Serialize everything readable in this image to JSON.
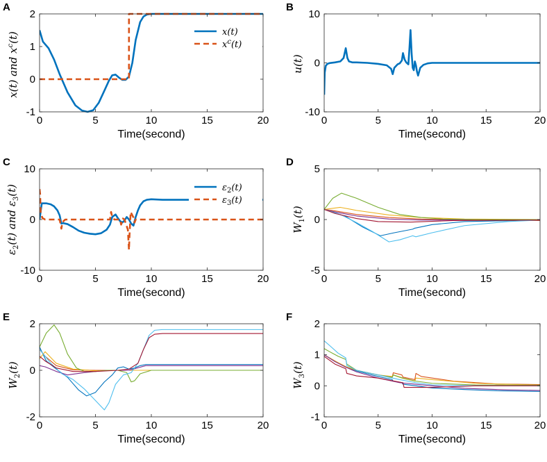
{
  "chart_data": [
    {
      "id": "A",
      "type": "line",
      "ylabel": "x(t) and x^c(t)",
      "xlabel": "Time(second)",
      "xlim": [
        0,
        20
      ],
      "ylim": [
        -1,
        2
      ],
      "xticks": [
        "0",
        "5",
        "10",
        "15",
        "20"
      ],
      "yticks": [
        "-1",
        "0",
        "1",
        "2"
      ],
      "legend": "top-right",
      "series": [
        {
          "name": "x(t)",
          "style": "solid",
          "color": "#0072BD",
          "x": [
            0,
            0.3,
            0.8,
            1.3,
            1.8,
            2.5,
            3.2,
            3.8,
            4.3,
            4.8,
            5.3,
            5.8,
            6.2,
            6.5,
            6.8,
            7.1,
            7.4,
            7.7,
            8.0,
            8.3,
            8.6,
            9.0,
            9.3,
            9.6,
            10.0,
            11,
            20
          ],
          "y": [
            1.5,
            1.15,
            0.95,
            0.6,
            0.15,
            -0.4,
            -0.8,
            -0.96,
            -1.0,
            -0.95,
            -0.72,
            -0.35,
            -0.05,
            0.12,
            0.14,
            0.05,
            -0.02,
            -0.02,
            0.08,
            0.5,
            1.2,
            1.75,
            1.92,
            1.98,
            2.0,
            2.0,
            2.0
          ]
        },
        {
          "name": "x^c(t)",
          "style": "dashed",
          "color": "#D95319",
          "x": [
            0,
            8.0,
            8.0,
            20
          ],
          "y": [
            0,
            0,
            2,
            2
          ]
        }
      ]
    },
    {
      "id": "B",
      "type": "line",
      "ylabel": "u(t)",
      "xlabel": "Time(second)",
      "xlim": [
        0,
        20
      ],
      "ylim": [
        -10,
        10
      ],
      "xticks": [
        "0",
        "5",
        "10",
        "15",
        "20"
      ],
      "yticks": [
        "-10",
        "0",
        "10"
      ],
      "series": [
        {
          "name": "u(t)",
          "style": "solid",
          "color": "#0072BD",
          "x": [
            0,
            0.05,
            0.15,
            0.3,
            0.5,
            1.0,
            1.5,
            1.8,
            2.0,
            2.15,
            2.3,
            2.6,
            3,
            4,
            5,
            5.8,
            6.2,
            6.35,
            6.5,
            6.8,
            7.0,
            7.2,
            7.3,
            7.45,
            7.6,
            7.8,
            7.9,
            8.0,
            8.1,
            8.2,
            8.3,
            8.4,
            8.5,
            8.6,
            8.7,
            8.9,
            9.2,
            9.6,
            10,
            20
          ],
          "y": [
            -6.5,
            -2,
            -0.6,
            -0.2,
            -0.05,
            0.1,
            0.3,
            1.0,
            3.0,
            1.0,
            0.3,
            0.1,
            0.1,
            0,
            -0.2,
            -0.5,
            -1.2,
            -2.3,
            -1.0,
            -0.3,
            -0.1,
            0.5,
            2.0,
            0.7,
            0.1,
            -0.3,
            3.0,
            6.7,
            2.0,
            -1.0,
            -1.5,
            0.3,
            -0.5,
            -1.8,
            -2.6,
            -1.0,
            -0.4,
            -0.1,
            0,
            0
          ]
        }
      ]
    },
    {
      "id": "C",
      "type": "line",
      "ylabel": "ε2(t) and ε3(t)",
      "xlabel": "Time(second)",
      "xlim": [
        0,
        20
      ],
      "ylim": [
        -10,
        10
      ],
      "xticks": [
        "0",
        "5",
        "10",
        "15",
        "20"
      ],
      "yticks": [
        "-10",
        "0",
        "10"
      ],
      "legend": "top-right",
      "series": [
        {
          "name": "ε2(t)",
          "style": "solid",
          "color": "#0072BD",
          "x": [
            0,
            0.2,
            0.6,
            1.0,
            1.3,
            1.6,
            1.8,
            1.95,
            2.1,
            2.5,
            3,
            3.5,
            4,
            4.5,
            5,
            5.5,
            6.0,
            6.3,
            6.5,
            6.8,
            7.0,
            7.2,
            7.4,
            7.6,
            7.8,
            8.0,
            8.2,
            8.4,
            8.6,
            8.8,
            9.0,
            9.3,
            9.6,
            10,
            11,
            20
          ],
          "y": [
            0,
            3.2,
            3.2,
            3.0,
            2.6,
            1.8,
            0.8,
            -0.8,
            -0.7,
            -0.9,
            -1.5,
            -2.2,
            -2.6,
            -2.8,
            -2.9,
            -2.7,
            -2.0,
            -1.0,
            0.5,
            1.0,
            0.3,
            -0.3,
            -0.6,
            -0.2,
            0.5,
            0,
            -0.8,
            -1.2,
            0.5,
            1.8,
            2.8,
            3.6,
            3.9,
            4.0,
            3.9,
            3.9
          ]
        },
        {
          "name": "ε3(t)",
          "style": "dashed",
          "color": "#D95319",
          "x": [
            0,
            0.05,
            0.1,
            0.25,
            0.5,
            1.8,
            1.95,
            2.05,
            2.3,
            6.3,
            6.4,
            6.5,
            6.7,
            7.2,
            7.3,
            7.45,
            7.6,
            7.9,
            8.0,
            8.05,
            8.15,
            8.4,
            8.5,
            8.6,
            20
          ],
          "y": [
            6.0,
            5.0,
            1.5,
            0.3,
            0,
            0,
            -1.8,
            -0.5,
            0,
            0,
            1.5,
            0.5,
            0,
            0,
            -1.0,
            0.2,
            0,
            -2.0,
            -6.0,
            -3.0,
            1.5,
            0.4,
            -0.6,
            0,
            0
          ]
        }
      ]
    },
    {
      "id": "D",
      "type": "line",
      "ylabel": "W1(t)",
      "xlabel": "Time(second)",
      "xlim": [
        0,
        20
      ],
      "ylim": [
        -5,
        5
      ],
      "xticks": [
        "0",
        "5",
        "10",
        "15",
        "20"
      ],
      "yticks": [
        "-5",
        "0",
        "5"
      ],
      "series": [
        {
          "color": "#0072BD",
          "x": [
            0,
            2,
            3.5,
            5.2,
            6.5,
            8.2,
            8.4,
            10,
            13,
            20
          ],
          "y": [
            1,
            0.3,
            -0.7,
            -1.6,
            -1.3,
            -0.95,
            -0.85,
            -0.5,
            -0.2,
            -0.05
          ]
        },
        {
          "color": "#D95319",
          "x": [
            0,
            1,
            3,
            6,
            9,
            13,
            20
          ],
          "y": [
            1,
            0.85,
            0.5,
            0.2,
            0.05,
            -0.05,
            -0.1
          ]
        },
        {
          "color": "#EDB120",
          "x": [
            0,
            1.5,
            3,
            6,
            9,
            13,
            20
          ],
          "y": [
            1,
            1.2,
            0.9,
            0.45,
            0.2,
            0.05,
            0
          ]
        },
        {
          "color": "#7E2F8E",
          "x": [
            0,
            1,
            3,
            6,
            9,
            13,
            20
          ],
          "y": [
            1,
            0.75,
            0.35,
            0.05,
            -0.05,
            -0.05,
            -0.02
          ]
        },
        {
          "color": "#77AC30",
          "x": [
            0,
            0.8,
            1.6,
            3,
            5,
            7,
            9,
            11,
            14,
            20
          ],
          "y": [
            1,
            2.1,
            2.6,
            2.1,
            1.2,
            0.5,
            0.2,
            0.05,
            0,
            0
          ]
        },
        {
          "color": "#4DBEEE",
          "x": [
            0,
            1.5,
            3,
            4.5,
            6,
            7,
            8.2,
            8.5,
            10,
            13,
            17,
            20
          ],
          "y": [
            1,
            0.5,
            -0.3,
            -1.2,
            -2.2,
            -2.0,
            -1.6,
            -1.7,
            -1.3,
            -0.6,
            -0.2,
            -0.05
          ]
        },
        {
          "color": "#A2142F",
          "x": [
            0,
            1,
            3,
            5,
            8,
            12,
            20
          ],
          "y": [
            1,
            0.6,
            0.1,
            -0.2,
            -0.25,
            -0.1,
            -0.05
          ]
        }
      ]
    },
    {
      "id": "E",
      "type": "line",
      "ylabel": "W2(t)",
      "xlabel": "Time(second)",
      "xlim": [
        0,
        20
      ],
      "ylim": [
        -2,
        2
      ],
      "xticks": [
        "0",
        "5",
        "10",
        "15",
        "20"
      ],
      "yticks": [
        "-2",
        "0",
        "2"
      ],
      "series": [
        {
          "color": "#0072BD",
          "x": [
            0,
            0.6,
            1.5,
            2.5,
            3.5,
            4.2,
            5.0,
            5.8,
            6.5,
            7.0,
            7.5,
            8.0,
            8.5,
            9,
            9.5,
            10,
            20
          ],
          "y": [
            1.0,
            0.4,
            0.05,
            -0.3,
            -0.85,
            -1.1,
            -0.95,
            -0.5,
            -0.2,
            0.1,
            0.15,
            0.05,
            0.1,
            0.2,
            0.25,
            0.25,
            0.25
          ]
        },
        {
          "color": "#D95319",
          "x": [
            0,
            0.5,
            1.5,
            3,
            5,
            7,
            20
          ],
          "y": [
            0.9,
            0.6,
            0.2,
            0.02,
            0,
            0,
            0
          ]
        },
        {
          "color": "#EDB120",
          "x": [
            0,
            0.5,
            1.5,
            3,
            5,
            7,
            20
          ],
          "y": [
            0.5,
            0.8,
            0.3,
            0.05,
            -0.02,
            0,
            0
          ]
        },
        {
          "color": "#7E2F8E",
          "x": [
            0,
            0.5,
            1.5,
            2.5,
            4,
            6,
            8,
            9.5,
            10,
            20
          ],
          "y": [
            0.2,
            0.15,
            -0.05,
            -0.2,
            -0.1,
            0,
            0,
            0.2,
            0.2,
            0.2
          ]
        },
        {
          "color": "#77AC30",
          "x": [
            0,
            0.6,
            1.3,
            1.8,
            2.5,
            3.3,
            4,
            5,
            6,
            7,
            7.8,
            8.2,
            8.5,
            9,
            10,
            20
          ],
          "y": [
            1.0,
            1.6,
            1.95,
            1.6,
            0.7,
            0.1,
            -0.05,
            -0.05,
            0,
            0,
            -0.1,
            -0.5,
            -0.45,
            -0.15,
            0,
            0
          ]
        },
        {
          "color": "#4DBEEE",
          "x": [
            0,
            1,
            2,
            3,
            4,
            5,
            5.8,
            6.2,
            6.8,
            7.5,
            8.2,
            8.8,
            9.3,
            9.8,
            10.3,
            11,
            20
          ],
          "y": [
            0.9,
            0.3,
            -0.15,
            -0.4,
            -0.8,
            -1.3,
            -1.7,
            -1.4,
            -0.6,
            -0.2,
            -0.1,
            0.3,
            0.9,
            1.5,
            1.72,
            1.75,
            1.75
          ]
        },
        {
          "color": "#A2142F",
          "x": [
            0,
            0.5,
            1.5,
            3,
            5,
            7,
            8,
            8.8,
            9.3,
            9.8,
            10.3,
            11,
            20
          ],
          "y": [
            0.6,
            0.4,
            0.1,
            -0.05,
            -0.05,
            0,
            0.05,
            0.3,
            0.9,
            1.4,
            1.55,
            1.58,
            1.58
          ]
        }
      ]
    },
    {
      "id": "F",
      "type": "line",
      "ylabel": "W3(t)",
      "xlabel": "Time(second)",
      "xlim": [
        0,
        20
      ],
      "ylim": [
        -1,
        2
      ],
      "xticks": [
        "0",
        "5",
        "10",
        "15",
        "20"
      ],
      "yticks": [
        "-1",
        "0",
        "1",
        "2"
      ],
      "series": [
        {
          "color": "#0072BD",
          "x": [
            0,
            1,
            2,
            3,
            5,
            6.3,
            6.4,
            7.2,
            7.3,
            8.5,
            10,
            13,
            16,
            20
          ],
          "y": [
            1.0,
            0.8,
            0.6,
            0.48,
            0.3,
            0.2,
            0.15,
            0.1,
            0.05,
            0,
            -0.07,
            -0.12,
            -0.16,
            -0.18
          ]
        },
        {
          "color": "#D95319",
          "x": [
            0,
            1,
            2,
            3,
            5,
            6.3,
            6.4,
            7.2,
            7.3,
            8.4,
            8.5,
            9,
            12,
            16,
            20
          ],
          "y": [
            1.0,
            0.8,
            0.6,
            0.5,
            0.35,
            0.28,
            0.42,
            0.35,
            0.28,
            0.2,
            0.4,
            0.3,
            0.15,
            0.06,
            0.04
          ]
        },
        {
          "color": "#EDB120",
          "x": [
            0,
            1,
            2,
            3,
            5,
            6.3,
            6.4,
            7.2,
            8.4,
            8.5,
            10,
            14,
            20
          ],
          "y": [
            1.0,
            0.8,
            0.62,
            0.5,
            0.35,
            0.3,
            0.35,
            0.25,
            0.15,
            0.25,
            0.2,
            0.08,
            0.02
          ]
        },
        {
          "color": "#7E2F8E",
          "x": [
            0,
            1,
            2,
            3,
            5,
            7,
            8.5,
            10,
            13,
            17,
            20
          ],
          "y": [
            1.0,
            0.78,
            0.6,
            0.45,
            0.25,
            0.1,
            0.05,
            0,
            -0.08,
            -0.13,
            -0.15
          ]
        },
        {
          "color": "#77AC30",
          "x": [
            0,
            0.5,
            1.3,
            2.0,
            2.1,
            3,
            5,
            6.3,
            6.4,
            7.3,
            8.5,
            10,
            14,
            20
          ],
          "y": [
            1.2,
            1.1,
            0.95,
            0.85,
            0.7,
            0.5,
            0.35,
            0.27,
            0.35,
            0.25,
            0.15,
            0.08,
            0.03,
            0.02
          ]
        },
        {
          "color": "#4DBEEE",
          "x": [
            0,
            0.5,
            1.3,
            2.0,
            2.1,
            3,
            5,
            7,
            8.5,
            10,
            14,
            20
          ],
          "y": [
            1.45,
            1.3,
            1.05,
            0.9,
            0.65,
            0.5,
            0.35,
            0.2,
            0.1,
            0.03,
            0,
            0
          ]
        },
        {
          "color": "#A2142F",
          "x": [
            0,
            1,
            2,
            2.1,
            3,
            5,
            7.3,
            7.4,
            8.5,
            10,
            14,
            20
          ],
          "y": [
            0.95,
            0.7,
            0.55,
            0.4,
            0.32,
            0.25,
            0.1,
            -0.05,
            -0.05,
            -0.05,
            0,
            0
          ]
        }
      ]
    }
  ],
  "legend_text": {
    "A1": "x(t)",
    "A2_base": "x",
    "A2_sup": "c",
    "A2_tail": "(t)",
    "C1_base": "ε",
    "C1_sub": "2",
    "C1_tail": "(t)",
    "C2_base": "ε",
    "C2_sub": "3",
    "C2_tail": "(t)"
  },
  "ylabel_text": {
    "A_a": "x(t) and x",
    "A_sup": "c",
    "A_b": "(t)",
    "B": "u(t)",
    "C_a": "ε",
    "C_s1": "2",
    "C_b": "(t) and ε",
    "C_s2": "3",
    "C_c": "(t)",
    "D_a": "W",
    "D_s": "1",
    "D_b": "(t)",
    "E_a": "W",
    "E_s": "2",
    "E_b": "(t)",
    "F_a": "W",
    "F_s": "3",
    "F_b": "(t)"
  }
}
